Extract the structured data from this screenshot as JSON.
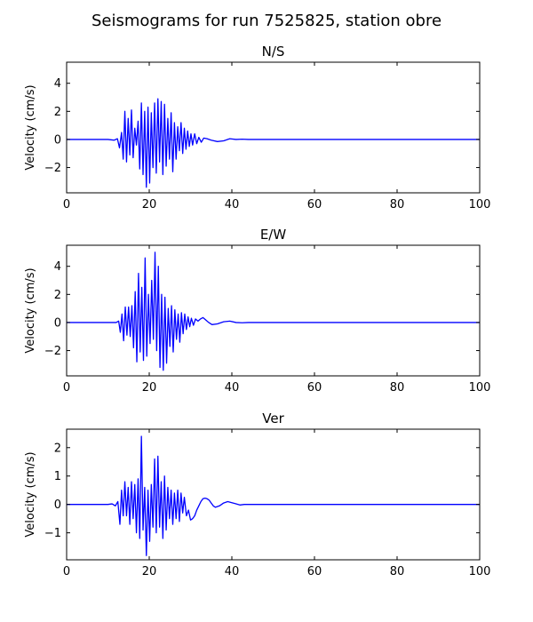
{
  "figure": {
    "title": "Seismograms for run 7525825, station obre"
  },
  "chart_data": [
    {
      "type": "line",
      "title": "N/S",
      "xlabel": "",
      "ylabel": "Velocity (cm/s)",
      "xlim": [
        0,
        100
      ],
      "ylim": [
        -3.8,
        5.5
      ],
      "xticks": [
        0,
        20,
        40,
        60,
        80,
        100
      ],
      "yticks": [
        -2,
        0,
        2,
        4
      ],
      "grid": false,
      "color": "#0000ff",
      "series": [
        {
          "x": [
            0,
            5,
            10,
            11.5,
            12.3,
            12.8,
            13.3,
            13.7,
            14.1,
            14.5,
            14.9,
            15.3,
            15.7,
            16.1,
            16.5,
            16.9,
            17.3,
            17.7,
            18.1,
            18.5,
            18.9,
            19.3,
            19.7,
            20.1,
            20.5,
            20.9,
            21.3,
            21.7,
            22.1,
            22.5,
            22.9,
            23.3,
            23.7,
            24.1,
            24.5,
            24.9,
            25.3,
            25.7,
            26.1,
            26.5,
            26.9,
            27.3,
            27.7,
            28.1,
            28.5,
            28.9,
            29.3,
            29.7,
            30.1,
            30.5,
            31,
            31.5,
            32,
            32.6,
            33.2,
            34,
            35,
            36.5,
            38,
            39.5,
            41,
            42.5,
            44,
            46,
            50,
            60,
            70,
            80,
            90,
            100
          ],
          "y": [
            0,
            0,
            0,
            -0.05,
            0.05,
            -0.6,
            0.5,
            -1.4,
            2.0,
            -1.6,
            1.5,
            -1.1,
            2.1,
            -1.3,
            0.8,
            -0.4,
            1.3,
            -2.1,
            2.6,
            -2.5,
            2.0,
            -3.4,
            2.3,
            -3.1,
            1.9,
            -2.0,
            2.6,
            -2.4,
            2.9,
            -1.6,
            2.7,
            -2.5,
            2.5,
            -1.9,
            1.5,
            -1.4,
            1.9,
            -2.3,
            1.2,
            -1.4,
            0.9,
            -0.8,
            1.2,
            -1.0,
            0.8,
            -0.7,
            0.6,
            -0.5,
            0.4,
            -0.4,
            0.4,
            -0.3,
            0.15,
            -0.2,
            0.1,
            0.05,
            -0.05,
            -0.15,
            -0.1,
            0.05,
            0,
            0.02,
            0,
            0,
            0,
            0,
            0,
            0,
            0,
            0
          ]
        }
      ]
    },
    {
      "type": "line",
      "title": "E/W",
      "xlabel": "",
      "ylabel": "Velocity (cm/s)",
      "xlim": [
        0,
        100
      ],
      "ylim": [
        -3.8,
        5.5
      ],
      "xticks": [
        0,
        20,
        40,
        60,
        80,
        100
      ],
      "yticks": [
        -2,
        0,
        2,
        4
      ],
      "grid": false,
      "color": "#0000ff",
      "series": [
        {
          "x": [
            0,
            5,
            10,
            12,
            12.6,
            13.0,
            13.4,
            13.8,
            14.2,
            14.6,
            15.0,
            15.4,
            15.8,
            16.2,
            16.6,
            17.0,
            17.4,
            17.8,
            18.2,
            18.6,
            19.0,
            19.4,
            19.8,
            20.2,
            20.6,
            21.0,
            21.4,
            21.8,
            22.2,
            22.6,
            23.0,
            23.4,
            23.8,
            24.2,
            24.6,
            25.0,
            25.4,
            25.8,
            26.2,
            26.6,
            27.0,
            27.4,
            27.8,
            28.2,
            28.6,
            29.0,
            29.4,
            29.8,
            30.2,
            30.7,
            31.2,
            31.8,
            32.4,
            33.0,
            33.6,
            34.4,
            35.2,
            36.5,
            38,
            39.5,
            41,
            42.5,
            44,
            46,
            50,
            60,
            70,
            80,
            90,
            100
          ],
          "y": [
            0,
            0,
            0,
            0,
            0.1,
            -0.7,
            0.6,
            -1.3,
            1.1,
            -0.9,
            1.1,
            -1.0,
            1.2,
            -1.8,
            2.2,
            -2.8,
            3.5,
            -2.1,
            2.5,
            -2.7,
            4.6,
            -2.4,
            2.0,
            -1.5,
            3.0,
            -1.2,
            5.0,
            -2.0,
            4.0,
            -3.2,
            2.0,
            -3.4,
            1.8,
            -2.9,
            1.0,
            -1.7,
            1.2,
            -2.1,
            0.9,
            -1.2,
            0.6,
            -1.4,
            0.7,
            -0.8,
            0.6,
            -0.5,
            0.4,
            -0.3,
            0.3,
            -0.2,
            0.25,
            0.1,
            0.25,
            0.35,
            0.2,
            0,
            -0.15,
            -0.1,
            0.05,
            0.1,
            0,
            -0.02,
            0,
            0,
            0,
            0,
            0,
            0,
            0,
            0
          ]
        }
      ]
    },
    {
      "type": "line",
      "title": "Ver",
      "xlabel": "",
      "ylabel": "Velocity (cm/s)",
      "xlim": [
        0,
        100
      ],
      "ylim": [
        -1.95,
        2.65
      ],
      "xticks": [
        0,
        20,
        40,
        60,
        80,
        100
      ],
      "yticks": [
        -1,
        0,
        1,
        2
      ],
      "grid": false,
      "color": "#0000ff",
      "series": [
        {
          "x": [
            0,
            5,
            10,
            11,
            11.8,
            12.4,
            12.9,
            13.3,
            13.7,
            14.1,
            14.5,
            14.9,
            15.3,
            15.7,
            16.1,
            16.5,
            16.9,
            17.3,
            17.7,
            18.1,
            18.5,
            18.9,
            19.3,
            19.7,
            20.1,
            20.5,
            20.9,
            21.3,
            21.7,
            22.1,
            22.5,
            22.9,
            23.3,
            23.7,
            24.1,
            24.5,
            24.9,
            25.3,
            25.7,
            26.1,
            26.5,
            26.9,
            27.3,
            27.7,
            28.1,
            28.5,
            29,
            29.5,
            30,
            30.5,
            31,
            31.5,
            32,
            32.5,
            33,
            33.5,
            34,
            34.5,
            35,
            35.5,
            36,
            37,
            38,
            39,
            40,
            41,
            42,
            43,
            44,
            46,
            50,
            60,
            70,
            80,
            90,
            100
          ],
          "y": [
            0,
            0,
            0,
            0.02,
            -0.05,
            0.1,
            -0.7,
            0.5,
            -0.4,
            0.8,
            -0.4,
            0.6,
            -0.7,
            0.8,
            -0.5,
            0.7,
            -1.0,
            0.9,
            -1.2,
            2.4,
            -0.9,
            0.6,
            -1.8,
            0.5,
            -1.3,
            0.7,
            -0.8,
            1.6,
            -1.0,
            1.7,
            -0.8,
            0.8,
            -1.2,
            1.0,
            -0.9,
            0.6,
            -0.5,
            0.5,
            -0.7,
            0.4,
            -0.5,
            0.5,
            -0.6,
            0.4,
            -0.3,
            0.25,
            -0.4,
            -0.2,
            -0.55,
            -0.5,
            -0.4,
            -0.2,
            -0.05,
            0.1,
            0.2,
            0.22,
            0.2,
            0.15,
            0.05,
            -0.05,
            -0.1,
            -0.05,
            0.05,
            0.1,
            0.06,
            0.02,
            -0.02,
            0,
            0,
            0,
            0,
            0,
            0,
            0,
            0,
            0
          ]
        }
      ]
    }
  ]
}
